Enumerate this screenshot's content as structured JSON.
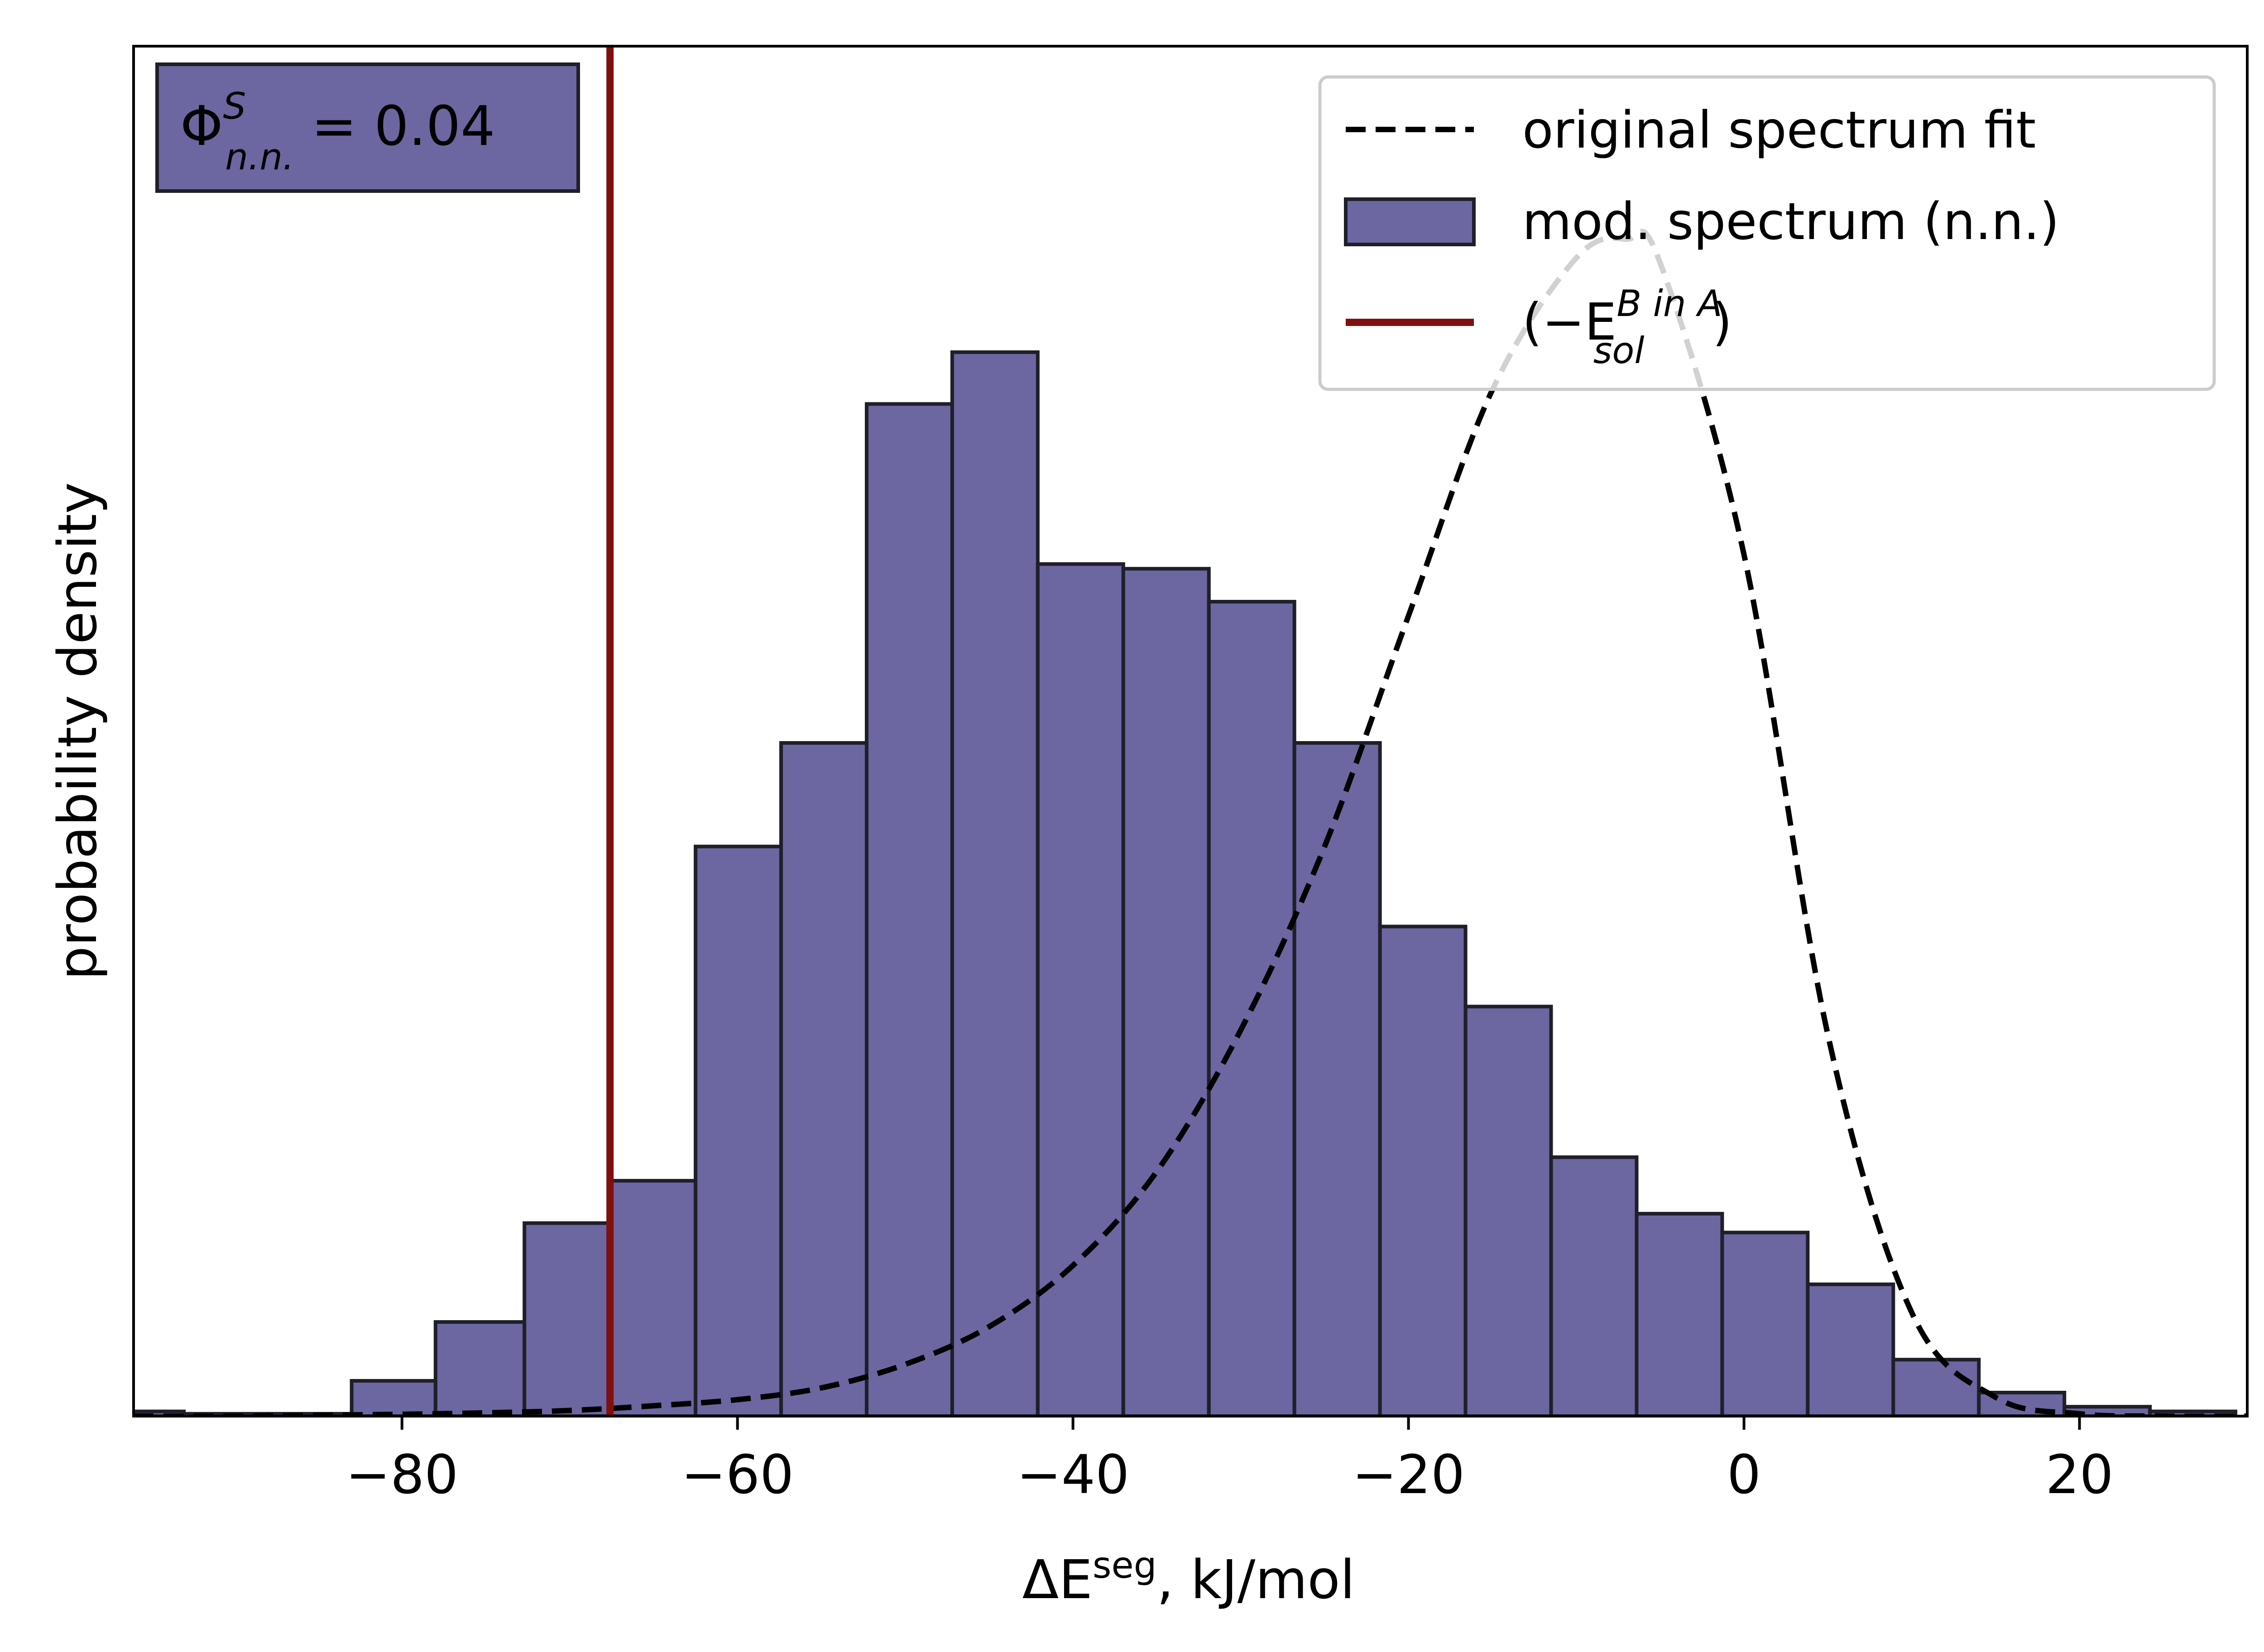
{
  "chart_data": {
    "type": "bar",
    "xlabel": "ΔE",
    "xlabel_sup": "seg",
    "xlabel_unit": ", kJ/mol",
    "ylabel": "probability density",
    "xlim": [
      -96,
      30
    ],
    "ylim": [
      0,
      0.0291
    ],
    "xticks": [
      -80,
      -60,
      -40,
      -20,
      0,
      20
    ],
    "grid": false,
    "legend_position": "top-right",
    "annotation": {
      "symbol": "Φ",
      "sup": "S",
      "sub": "n.n.",
      "value_text": " = 0.04",
      "color": "#6c66a1"
    },
    "histogram": {
      "name": "mod. spectrum (n.n.)",
      "color": "#6c66a1",
      "edgecolor": "#1f1f2a",
      "bin_edges": [
        -98,
        -93,
        -88,
        -83,
        -78,
        -72.7,
        -67.6,
        -62.5,
        -57.4,
        -52.3,
        -47.2,
        -42.1,
        -37.0,
        -31.9,
        -26.8,
        -21.7,
        -16.6,
        -11.5,
        -6.4,
        -1.3,
        3.8,
        8.9,
        14.0,
        19.1,
        24.2,
        29.3
      ],
      "values": [
        0.0001,
        5e-05,
        5e-05,
        0.00075,
        0.002,
        0.0041,
        0.005,
        0.0121,
        0.0143,
        0.0215,
        0.0226,
        0.0181,
        0.018,
        0.0173,
        0.0143,
        0.0104,
        0.0087,
        0.0055,
        0.0043,
        0.0039,
        0.0028,
        0.0012,
        0.0005,
        0.0002,
        0.0001
      ]
    },
    "fit_curve": {
      "name": "original spectrum fit",
      "style": "dashed",
      "color": "#000000",
      "x": [
        -96,
        -90,
        -85,
        -80,
        -75,
        -70,
        -65,
        -60,
        -55,
        -50,
        -45,
        -40,
        -35,
        -30,
        -25,
        -20,
        -15,
        -10,
        -7,
        -5,
        0,
        5,
        10,
        15,
        20,
        25,
        30
      ],
      "y": [
        0.0,
        0.0,
        2e-05,
        4e-05,
        7e-05,
        0.00012,
        0.00022,
        0.00035,
        0.0006,
        0.0011,
        0.0019,
        0.0032,
        0.0052,
        0.0082,
        0.0121,
        0.017,
        0.0218,
        0.0246,
        0.025,
        0.0245,
        0.0183,
        0.0081,
        0.0022,
        0.0004,
        5e-05,
        0.0,
        0.0
      ]
    },
    "vertical_line": {
      "name": "(−E",
      "sub": "sol",
      "sup": "B in A",
      "close": ")",
      "x": -67.6,
      "color": "#7f0f0f"
    }
  }
}
